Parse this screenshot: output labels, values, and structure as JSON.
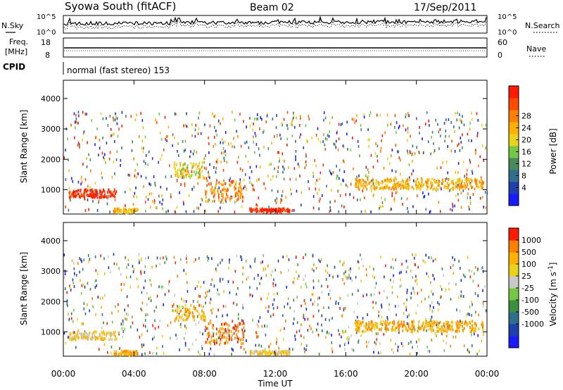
{
  "header": {
    "station": "Syowa South (fitACF)",
    "beam": "Beam 02",
    "date": "17/Sep/2011"
  },
  "info_panels": {
    "nsky_label": "N.Sky",
    "nsearch_label": "N.Search",
    "nsky_ticks": [
      "10^5",
      "10^0"
    ],
    "nsearch_ticks": [
      "10^5",
      "10^0"
    ],
    "freq_label_top": "Freq.",
    "freq_label_bottom": "[MHz]",
    "freq_ticks": [
      "18",
      "8"
    ],
    "nave_label": "Nave",
    "nave_ticks": [
      "60",
      "0"
    ],
    "cpid_label": "CPID",
    "cpid_text": "normal (fast stereo) 153"
  },
  "chart_data": [
    {
      "type": "heatmap",
      "panel": "power",
      "ylabel": "Slant Range [km]",
      "xlabel": "",
      "ylim": [
        200,
        4600
      ],
      "yticks": [
        "1000",
        "2000",
        "3000",
        "4000"
      ],
      "xlim": [
        0,
        24
      ],
      "colorbar_title": "Power [dB]",
      "colorbar_ticks": [
        "4",
        "8",
        "12",
        "16",
        "20",
        "24",
        "28"
      ],
      "colorbar_colors": [
        "#1a1aff",
        "#1f3fae",
        "#2f6e8c",
        "#4a8a5a",
        "#74c843",
        "#e8d21a",
        "#ffb000",
        "#ff8000",
        "#ff4a00",
        "#ff1a00"
      ],
      "scatter_ranges": [
        300,
        3600
      ],
      "bands": [
        {
          "t0": 0.3,
          "t1": 3.0,
          "r0": 780,
          "r1": 1050,
          "level": 9
        },
        {
          "t0": 2.8,
          "t1": 4.2,
          "r0": 280,
          "r1": 420,
          "level": 6
        },
        {
          "t0": 6.2,
          "t1": 8.0,
          "r0": 1400,
          "r1": 1950,
          "level": 5
        },
        {
          "t0": 8.0,
          "t1": 10.2,
          "r0": 650,
          "r1": 1350,
          "level": 7
        },
        {
          "t0": 10.5,
          "t1": 12.8,
          "r0": 300,
          "r1": 420,
          "level": 9
        },
        {
          "t0": 16.5,
          "t1": 23.8,
          "r0": 1050,
          "r1": 1400,
          "level": 6
        }
      ]
    },
    {
      "type": "heatmap",
      "panel": "velocity",
      "ylabel": "Slant Range [km]",
      "xlabel": "Time UT",
      "ylim": [
        200,
        4600
      ],
      "yticks": [
        "1000",
        "2000",
        "3000",
        "4000"
      ],
      "xlim": [
        0,
        24
      ],
      "xticks": [
        "00:00",
        "04:00",
        "08:00",
        "12:00",
        "16:00",
        "20:00",
        "00:00"
      ],
      "colorbar_title": "Velocity [m s^-1]",
      "colorbar_ticks": [
        "1000",
        "500",
        "100",
        "25",
        "-25",
        "-100",
        "-500",
        "-1000"
      ],
      "colorbar_colors": [
        "#1a1aff",
        "#1f3fae",
        "#2f6e8c",
        "#3c8f3c",
        "#74c843",
        "#c8c8c8",
        "#e8d21a",
        "#ffb000",
        "#ff8000",
        "#ff1a00"
      ],
      "scatter_ranges": [
        300,
        3600
      ],
      "bands": [
        {
          "t0": 0.3,
          "t1": 3.0,
          "r0": 780,
          "r1": 1050,
          "level": 6
        },
        {
          "t0": 2.8,
          "t1": 4.2,
          "r0": 280,
          "r1": 420,
          "level": 7
        },
        {
          "t0": 6.2,
          "t1": 8.0,
          "r0": 1400,
          "r1": 1950,
          "level": 7
        },
        {
          "t0": 8.0,
          "t1": 10.2,
          "r0": 650,
          "r1": 1350,
          "level": 8
        },
        {
          "t0": 10.5,
          "t1": 12.8,
          "r0": 300,
          "r1": 420,
          "level": 6
        },
        {
          "t0": 16.5,
          "t1": 23.8,
          "r0": 1050,
          "r1": 1400,
          "level": 7
        }
      ]
    }
  ]
}
